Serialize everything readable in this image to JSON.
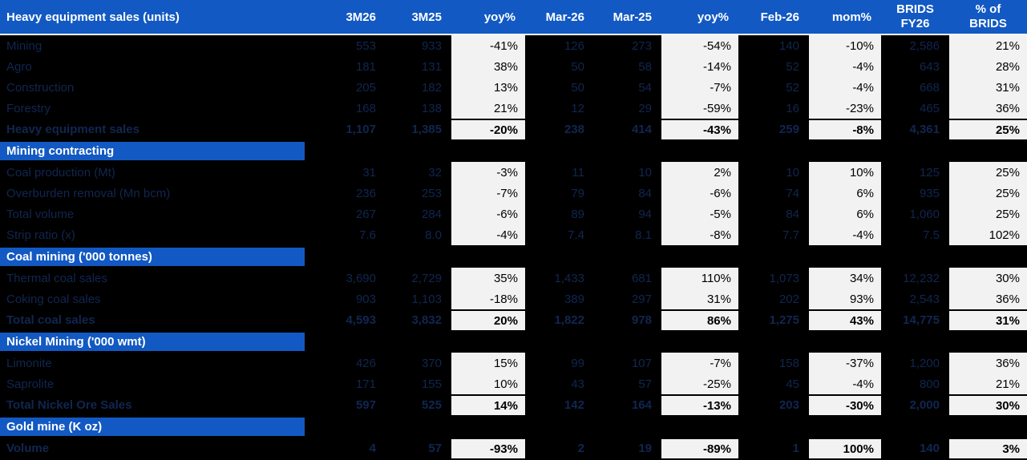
{
  "colors": {
    "header_blue": "#1259c3",
    "row_text": "#112650",
    "cell_bg": "#f2f2f2",
    "cell_text": "#000000",
    "background": "#000000"
  },
  "header": {
    "title": "Heavy equipment sales (units)",
    "cols": [
      "3M26",
      "3M25",
      "yoy%",
      "Mar-26",
      "Mar-25",
      "yoy%",
      "Feb-26",
      "mom%",
      "BRIDS\nFY26",
      "% of\nBRIDS"
    ]
  },
  "sections": [
    {
      "title": "",
      "rows": [
        {
          "label": "Mining",
          "total": false,
          "values": [
            "553",
            "933",
            "-41%",
            "126",
            "273",
            "-54%",
            "140",
            "-10%",
            "2,586",
            "21%"
          ]
        },
        {
          "label": "Agro",
          "total": false,
          "values": [
            "181",
            "131",
            "38%",
            "50",
            "58",
            "-14%",
            "52",
            "-4%",
            "643",
            "28%"
          ]
        },
        {
          "label": "Construction",
          "total": false,
          "values": [
            "205",
            "182",
            "13%",
            "50",
            "54",
            "-7%",
            "52",
            "-4%",
            "668",
            "31%"
          ]
        },
        {
          "label": "Forestry",
          "total": false,
          "values": [
            "168",
            "138",
            "21%",
            "12",
            "29",
            "-59%",
            "16",
            "-23%",
            "465",
            "36%"
          ]
        },
        {
          "label": "Heavy equipment sales",
          "total": true,
          "values": [
            "1,107",
            "1,385",
            "-20%",
            "238",
            "414",
            "-43%",
            "259",
            "-8%",
            "4,361",
            "25%"
          ]
        }
      ]
    },
    {
      "title": "Mining contracting",
      "rows": [
        {
          "label": "Coal production (Mt)",
          "total": false,
          "values": [
            "31",
            "32",
            "-3%",
            "11",
            "10",
            "2%",
            "10",
            "10%",
            "125",
            "25%"
          ]
        },
        {
          "label": "Overburden removal (Mn bcm)",
          "total": false,
          "values": [
            "236",
            "253",
            "-7%",
            "79",
            "84",
            "-6%",
            "74",
            "6%",
            "935",
            "25%"
          ]
        },
        {
          "label": "Total volume",
          "total": false,
          "values": [
            "267",
            "284",
            "-6%",
            "89",
            "94",
            "-5%",
            "84",
            "6%",
            "1,060",
            "25%"
          ]
        },
        {
          "label": "Strip ratio (x)",
          "total": false,
          "values": [
            "7.6",
            "8.0",
            "-4%",
            "7.4",
            "8.1",
            "-8%",
            "7.7",
            "-4%",
            "7.5",
            "102%"
          ]
        }
      ]
    },
    {
      "title": "Coal mining ('000 tonnes)",
      "rows": [
        {
          "label": "Thermal coal sales",
          "total": false,
          "values": [
            "3,690",
            "2,729",
            "35%",
            "1,433",
            "681",
            "110%",
            "1,073",
            "34%",
            "12,232",
            "30%"
          ]
        },
        {
          "label": "Coking coal sales",
          "total": false,
          "values": [
            "903",
            "1,103",
            "-18%",
            "389",
            "297",
            "31%",
            "202",
            "93%",
            "2,543",
            "36%"
          ]
        },
        {
          "label": "Total coal sales",
          "total": true,
          "values": [
            "4,593",
            "3,832",
            "20%",
            "1,822",
            "978",
            "86%",
            "1,275",
            "43%",
            "14,775",
            "31%"
          ]
        }
      ]
    },
    {
      "title": "Nickel Mining ('000 wmt)",
      "rows": [
        {
          "label": "Limonite",
          "total": false,
          "values": [
            "426",
            "370",
            "15%",
            "99",
            "107",
            "-7%",
            "158",
            "-37%",
            "1,200",
            "36%"
          ]
        },
        {
          "label": "Saprolite",
          "total": false,
          "values": [
            "171",
            "155",
            "10%",
            "43",
            "57",
            "-25%",
            "45",
            "-4%",
            "800",
            "21%"
          ]
        },
        {
          "label": "Total Nickel Ore Sales",
          "total": true,
          "values": [
            "597",
            "525",
            "14%",
            "142",
            "164",
            "-13%",
            "203",
            "-30%",
            "2,000",
            "30%"
          ]
        }
      ]
    },
    {
      "title": "Gold mine (K oz)",
      "rows": [
        {
          "label": "Volume",
          "total": true,
          "values": [
            "4",
            "57",
            "-93%",
            "2",
            "19",
            "-89%",
            "1",
            "100%",
            "140",
            "3%"
          ]
        }
      ]
    }
  ]
}
